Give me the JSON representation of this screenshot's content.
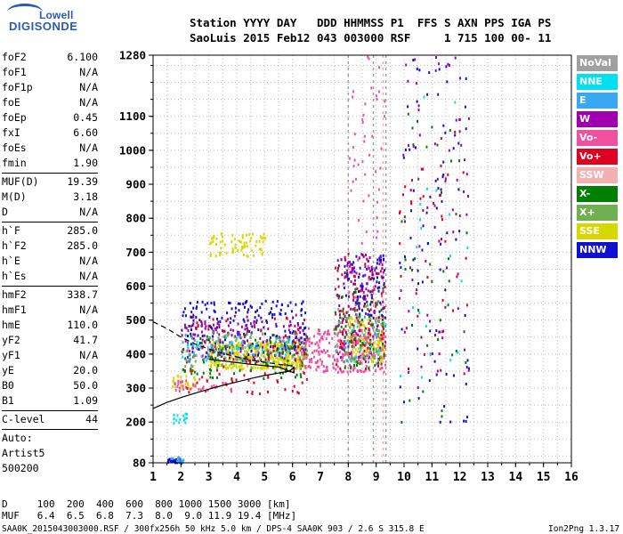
{
  "logo": {
    "brand_line1": "Lowell",
    "brand_line2": "DIGISONDE"
  },
  "header": {
    "row1": "Station YYYY DAY   DDD HHMMSS P1  FFS S AXN PPS IGA PS",
    "row2": "SaoLuis 2015 Feb12 043 003000 RSF     1 715 100 00- 11"
  },
  "params": {
    "group1": [
      {
        "key": "foF2",
        "value": "6.100"
      },
      {
        "key": "foF1",
        "value": "N/A"
      },
      {
        "key": "foF1p",
        "value": "N/A"
      },
      {
        "key": "foE",
        "value": "N/A"
      },
      {
        "key": "foEp",
        "value": "0.45"
      },
      {
        "key": "fxI",
        "value": "6.60"
      },
      {
        "key": "foEs",
        "value": "N/A"
      },
      {
        "key": "fmin",
        "value": "1.90"
      }
    ],
    "group2": [
      {
        "key": "MUF(D)",
        "value": "19.39"
      },
      {
        "key": "M(D)",
        "value": "3.18"
      },
      {
        "key": "D",
        "value": "N/A"
      }
    ],
    "group3": [
      {
        "key": "h`F",
        "value": "285.0"
      },
      {
        "key": "h`F2",
        "value": "285.0"
      },
      {
        "key": "h`E",
        "value": "N/A"
      },
      {
        "key": "h`Es",
        "value": "N/A"
      }
    ],
    "group4": [
      {
        "key": "hmF2",
        "value": "338.7"
      },
      {
        "key": "hmF1",
        "value": "N/A"
      },
      {
        "key": "hmE",
        "value": "110.0"
      },
      {
        "key": "yF2",
        "value": "41.7"
      },
      {
        "key": "yF1",
        "value": "N/A"
      },
      {
        "key": "yE",
        "value": "20.0"
      },
      {
        "key": "B0",
        "value": "50.0"
      },
      {
        "key": "B1",
        "value": "1.09"
      }
    ],
    "group5": [
      {
        "key": "C-level",
        "value": "44"
      }
    ],
    "auto": [
      "Auto:",
      "Artist5",
      "500200"
    ]
  },
  "legend": [
    {
      "label": "NoVal",
      "color": "#a0a0a0"
    },
    {
      "label": "NNE",
      "color": "#00e0f0"
    },
    {
      "label": "E",
      "color": "#3aa8f0"
    },
    {
      "label": "W",
      "color": "#a000b0"
    },
    {
      "label": "Vo-",
      "color": "#f050a0"
    },
    {
      "label": "Vo+",
      "color": "#e00020"
    },
    {
      "label": "SSW",
      "color": "#f4b0b0"
    },
    {
      "label": "X-",
      "color": "#008000"
    },
    {
      "label": "X+",
      "color": "#70b050"
    },
    {
      "label": "SSE",
      "color": "#d8d800"
    },
    {
      "label": "NNW",
      "color": "#1010d0"
    }
  ],
  "bottom": {
    "d_row": "D     100  200  400  600  800 1000 1500 3000 [km]",
    "muf_row": "MUF   6.4  6.5  6.8  7.3  8.0  9.0 11.9 19.4 [MHz]",
    "footer_left": "SAA0K_2015043003000.RSF / 300fx256h 50 kHz 5.0 km / DPS-4 SAA0K 903 / 2.6 S 315.8 E",
    "footer_right": "Ion2Png 1.3.17"
  },
  "chart_data": {
    "type": "scatter",
    "title": "",
    "xlabel": "",
    "ylabel": "",
    "xlim": [
      1,
      16
    ],
    "ylim": [
      80,
      1280
    ],
    "x_ticks": [
      1,
      2,
      3,
      4,
      5,
      6,
      7,
      8,
      9,
      10,
      11,
      12,
      13,
      14,
      15,
      16
    ],
    "y_ticks": [
      80,
      200,
      300,
      400,
      500,
      600,
      700,
      800,
      900,
      1000,
      1100,
      1280
    ],
    "marker_bands": [
      {
        "x": 8.0,
        "color": "#a0a0a0"
      },
      {
        "x": 8.9,
        "color": "#a0a0a0"
      },
      {
        "x": 9.25,
        "color": "#f4b0b0"
      },
      {
        "x": 9.35,
        "color": "#a0a0a0"
      }
    ],
    "series": [
      {
        "name": "SSE",
        "color": "#d8d800",
        "clusters": [
          {
            "x": [
              3.0,
              6.5
            ],
            "y": [
              360,
              440
            ],
            "count": 420
          },
          {
            "x": [
              3.0,
              5.0
            ],
            "y": [
              690,
              760
            ],
            "count": 70
          },
          {
            "x": [
              8.0,
              9.3
            ],
            "y": [
              380,
              520
            ],
            "count": 160
          },
          {
            "x": [
              1.6,
              2.5
            ],
            "y": [
              300,
              340
            ],
            "count": 30
          }
        ]
      },
      {
        "name": "Vo-",
        "color": "#f050a0",
        "clusters": [
          {
            "x": [
              6.0,
              9.3
            ],
            "y": [
              350,
              480
            ],
            "count": 260
          },
          {
            "x": [
              1.7,
              3.8
            ],
            "y": [
              290,
              330
            ],
            "count": 40
          },
          {
            "x": [
              8.0,
              9.3
            ],
            "y": [
              480,
              1280
            ],
            "count": 60
          }
        ]
      },
      {
        "name": "NNW",
        "color": "#1010d0",
        "clusters": [
          {
            "x": [
              2.0,
              6.5
            ],
            "y": [
              400,
              560
            ],
            "count": 200
          },
          {
            "x": [
              7.8,
              9.3
            ],
            "y": [
              500,
              700
            ],
            "count": 90
          },
          {
            "x": [
              1.5,
              2.0
            ],
            "y": [
              82,
              95
            ],
            "count": 25
          },
          {
            "x": [
              9.8,
              12.3
            ],
            "y": [
              200,
              1280
            ],
            "count": 80
          }
        ]
      },
      {
        "name": "W",
        "color": "#a000b0",
        "clusters": [
          {
            "x": [
              2.0,
              6.5
            ],
            "y": [
              380,
              500
            ],
            "count": 140
          },
          {
            "x": [
              7.5,
              9.3
            ],
            "y": [
              380,
              700
            ],
            "count": 120
          },
          {
            "x": [
              9.8,
              12.3
            ],
            "y": [
              300,
              1280
            ],
            "count": 70
          }
        ]
      },
      {
        "name": "Vo+",
        "color": "#e00020",
        "clusters": [
          {
            "x": [
              2.0,
              6.5
            ],
            "y": [
              280,
              520
            ],
            "count": 110
          },
          {
            "x": [
              7.5,
              9.3
            ],
            "y": [
              360,
              700
            ],
            "count": 100
          },
          {
            "x": [
              9.8,
              12.3
            ],
            "y": [
              300,
              1100
            ],
            "count": 40
          }
        ]
      },
      {
        "name": "X-",
        "color": "#008000",
        "clusters": [
          {
            "x": [
              2.0,
              6.5
            ],
            "y": [
              330,
              460
            ],
            "count": 90
          },
          {
            "x": [
              7.5,
              9.3
            ],
            "y": [
              360,
              600
            ],
            "count": 60
          },
          {
            "x": [
              9.8,
              12.3
            ],
            "y": [
              200,
              1200
            ],
            "count": 40
          }
        ]
      },
      {
        "name": "X+",
        "color": "#70b050",
        "clusters": [
          {
            "x": [
              2.0,
              6.5
            ],
            "y": [
              360,
              470
            ],
            "count": 80
          },
          {
            "x": [
              7.5,
              9.3
            ],
            "y": [
              380,
              560
            ],
            "count": 40
          }
        ]
      },
      {
        "name": "NNE",
        "color": "#00e0f0",
        "clusters": [
          {
            "x": [
              1.7,
              2.2
            ],
            "y": [
              200,
              230
            ],
            "count": 15
          },
          {
            "x": [
              2.0,
              6.0
            ],
            "y": [
              380,
              440
            ],
            "count": 40
          },
          {
            "x": [
              7.5,
              9.3
            ],
            "y": [
              380,
              500
            ],
            "count": 20
          },
          {
            "x": [
              9.8,
              12.3
            ],
            "y": [
              300,
              1200
            ],
            "count": 20
          }
        ]
      },
      {
        "name": "E",
        "color": "#3aa8f0",
        "clusters": [
          {
            "x": [
              1.6,
              2.1
            ],
            "y": [
              82,
              100
            ],
            "count": 15
          },
          {
            "x": [
              2.0,
              6.0
            ],
            "y": [
              380,
              460
            ],
            "count": 30
          },
          {
            "x": [
              7.5,
              9.3
            ],
            "y": [
              380,
              520
            ],
            "count": 20
          }
        ]
      },
      {
        "name": "NoVal",
        "color": "#a0a0a0",
        "clusters": [
          {
            "x": [
              2.0,
              6.5
            ],
            "y": [
              380,
              440
            ],
            "count": 20
          }
        ]
      }
    ],
    "trace_solid": {
      "x": [
        1.0,
        1.5,
        2.0,
        2.5,
        3.0,
        3.5,
        4.0,
        4.5,
        5.0,
        5.5,
        5.9,
        6.05,
        6.05,
        5.5,
        5.0,
        4.5,
        4.0,
        3.5,
        3.0
      ],
      "y": [
        240,
        258,
        272,
        285,
        297,
        308,
        318,
        328,
        337,
        344,
        350,
        360,
        345,
        362,
        366,
        370,
        375,
        380,
        385
      ]
    },
    "trace_dashed": {
      "x": [
        1.0,
        1.5,
        2.0,
        2.5,
        3.0,
        3.5,
        4.0,
        4.5,
        5.0,
        5.5,
        6.0,
        6.1
      ],
      "y": [
        495,
        475,
        450,
        430,
        415,
        402,
        392,
        383,
        376,
        370,
        365,
        362
      ]
    },
    "grid": true,
    "legend_position": "right"
  }
}
